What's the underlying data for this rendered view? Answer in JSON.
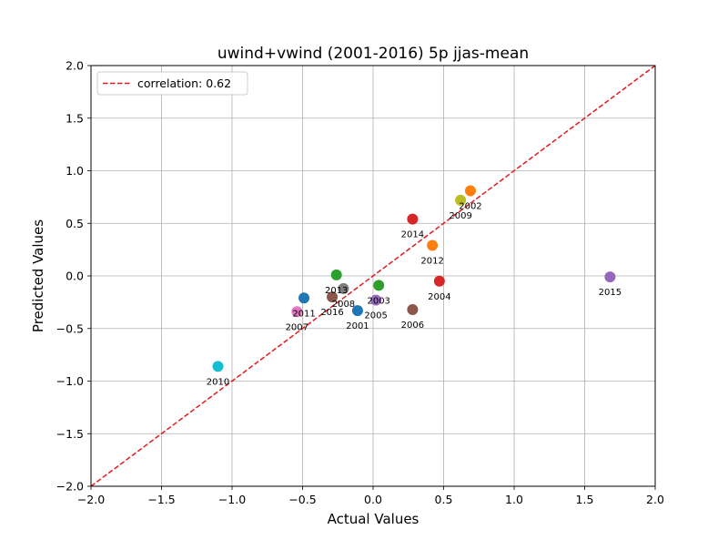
{
  "chart_data": {
    "type": "scatter",
    "title": "uwind+vwind (2001-2016) 5p jjas-mean",
    "xlabel": "Actual Values",
    "ylabel": "Predicted Values",
    "xlim": [
      -2.0,
      2.0
    ],
    "ylim": [
      -2.0,
      2.0
    ],
    "xticks": [
      "−2.0",
      "−1.5",
      "−1.0",
      "−0.5",
      "0.0",
      "0.5",
      "1.0",
      "1.5",
      "2.0"
    ],
    "yticks": [
      "−2.0",
      "−1.5",
      "−1.0",
      "−0.5",
      "0.0",
      "0.5",
      "1.0",
      "1.5",
      "2.0"
    ],
    "grid": true,
    "legend_position": "top-left",
    "reference_line": {
      "label": "correlation: 0.62",
      "color": "#e31a1c",
      "style": "dashed",
      "from": [
        -2.0,
        -2.0
      ],
      "to": [
        2.0,
        2.0
      ]
    },
    "points": [
      {
        "label": "2001",
        "x": -0.11,
        "y": -0.33,
        "color": "#1f77b4"
      },
      {
        "label": "2002",
        "x": 0.69,
        "y": 0.81,
        "color": "#ff7f0e"
      },
      {
        "label": "2003",
        "x": 0.04,
        "y": -0.09,
        "color": "#2ca02c"
      },
      {
        "label": "2004",
        "x": 0.47,
        "y": -0.05,
        "color": "#d62728"
      },
      {
        "label": "2005",
        "x": 0.02,
        "y": -0.23,
        "color": "#9467bd"
      },
      {
        "label": "2006",
        "x": 0.28,
        "y": -0.32,
        "color": "#8c564b"
      },
      {
        "label": "2007",
        "x": -0.54,
        "y": -0.34,
        "color": "#e377c2"
      },
      {
        "label": "2008",
        "x": -0.21,
        "y": -0.12,
        "color": "#7f7f7f"
      },
      {
        "label": "2009",
        "x": 0.62,
        "y": 0.72,
        "color": "#bcbd22"
      },
      {
        "label": "2010",
        "x": -1.1,
        "y": -0.86,
        "color": "#17becf"
      },
      {
        "label": "2011",
        "x": -0.49,
        "y": -0.21,
        "color": "#1f77b4"
      },
      {
        "label": "2012",
        "x": 0.42,
        "y": 0.29,
        "color": "#ff7f0e"
      },
      {
        "label": "2013",
        "x": -0.26,
        "y": 0.01,
        "color": "#2ca02c"
      },
      {
        "label": "2014",
        "x": 0.28,
        "y": 0.54,
        "color": "#d62728"
      },
      {
        "label": "2015",
        "x": 1.68,
        "y": -0.01,
        "color": "#9467bd"
      },
      {
        "label": "2016",
        "x": -0.29,
        "y": -0.2,
        "color": "#8c564b"
      }
    ]
  }
}
